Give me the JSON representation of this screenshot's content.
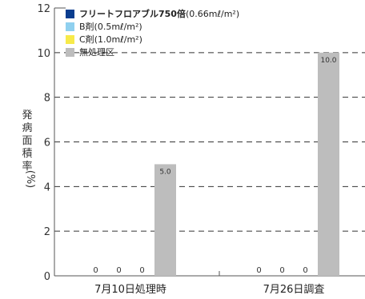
{
  "chart_data": {
    "type": "bar",
    "ylabel_chars": [
      "発",
      "病",
      "面",
      "積",
      "率",
      "(%)"
    ],
    "ylim": [
      0,
      12
    ],
    "yticks": [
      "0",
      "2",
      "4",
      "6",
      "8",
      "10",
      "12"
    ],
    "grid": "dashed horizontal",
    "legend_position": "top-left",
    "categories": [
      "7月10日処理時",
      "7月26日調査"
    ],
    "series": [
      {
        "name": "フリートフロアブル750倍",
        "name_suffix": "(0.66mℓ/m²)",
        "bold": true,
        "color": "#0a3d8f",
        "values": [
          0,
          0
        ]
      },
      {
        "name": "B剤",
        "name_suffix": "(0.5mℓ/m²)",
        "bold": false,
        "color": "#8fd0ef",
        "values": [
          0,
          0
        ]
      },
      {
        "name": "C剤",
        "name_suffix": "(1.0mℓ/m²)",
        "bold": false,
        "color": "#f7ea4a",
        "values": [
          0,
          0
        ]
      },
      {
        "name": "無処理区",
        "name_suffix": "",
        "bold": false,
        "color": "#bdbdbd",
        "values": [
          5.0,
          10.0
        ]
      }
    ],
    "data_labels": [
      [
        "0",
        "0"
      ],
      [
        "0",
        "0"
      ],
      [
        "0",
        "0"
      ],
      [
        "5.0",
        "10.0"
      ]
    ]
  }
}
